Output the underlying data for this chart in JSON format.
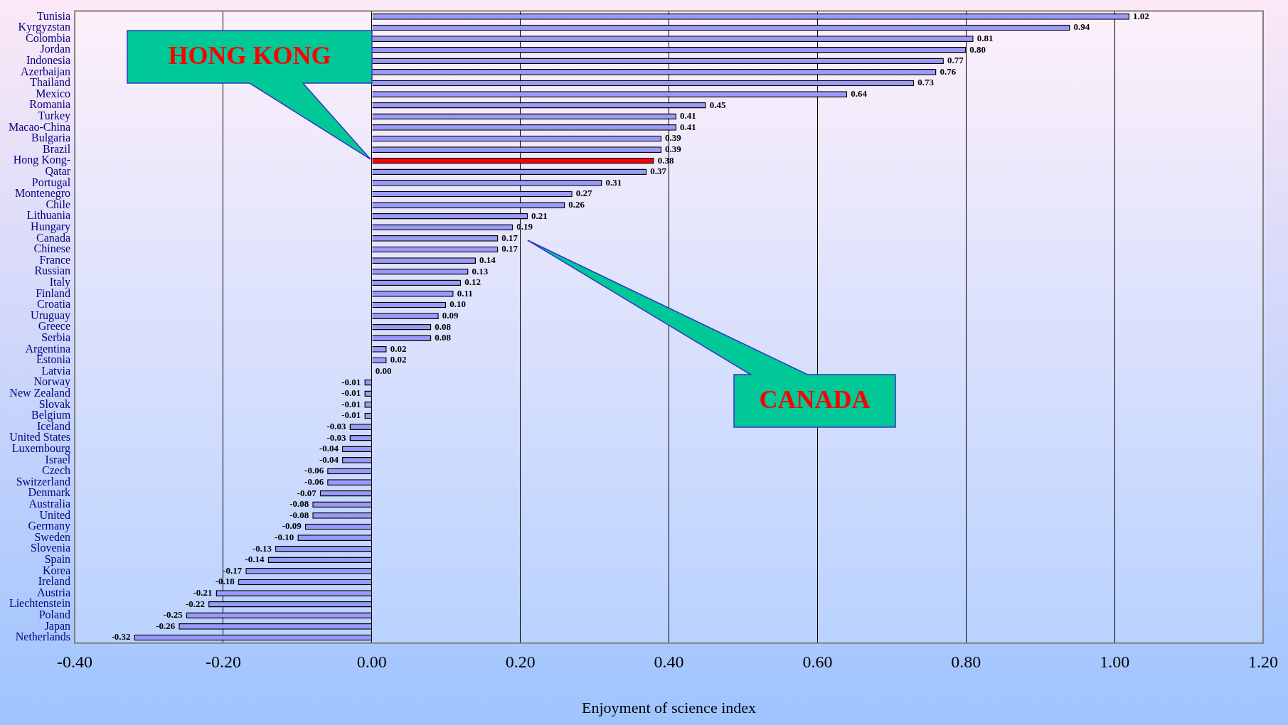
{
  "chart_data": {
    "type": "bar",
    "orientation": "horizontal",
    "xlabel": "Enjoyment of science index",
    "categories": [
      "Tunisia",
      "Kyrgyzstan",
      "Colombia",
      "Jordan",
      "Indonesia",
      "Azerbaijan",
      "Thailand",
      "Mexico",
      "Romania",
      "Turkey",
      "Macao-China",
      "Bulgaria",
      "Brazil",
      "Hong Kong-",
      "Qatar",
      "Portugal",
      "Montenegro",
      "Chile",
      "Lithuania",
      "Hungary",
      "Canada",
      "Chinese",
      "France",
      "Russian",
      "Italy",
      "Finland",
      "Croatia",
      "Uruguay",
      "Greece",
      "Serbia",
      "Argentina",
      "Estonia",
      "Latvia",
      "Norway",
      "New Zealand",
      "Slovak",
      "Belgium",
      "Iceland",
      "United States",
      "Luxembourg",
      "Israel",
      "Czech",
      "Switzerland",
      "Denmark",
      "Australia",
      "United",
      "Germany",
      "Sweden",
      "Slovenia",
      "Spain",
      "Korea",
      "Ireland",
      "Austria",
      "Liechtenstein",
      "Poland",
      "Japan",
      "Netherlands"
    ],
    "values": [
      1.02,
      0.94,
      0.81,
      0.8,
      0.77,
      0.76,
      0.73,
      0.64,
      0.45,
      0.41,
      0.41,
      0.39,
      0.39,
      0.38,
      0.37,
      0.31,
      0.27,
      0.26,
      0.21,
      0.19,
      0.17,
      0.17,
      0.14,
      0.13,
      0.12,
      0.11,
      0.1,
      0.09,
      0.08,
      0.08,
      0.02,
      0.02,
      0.0,
      -0.01,
      -0.01,
      -0.01,
      -0.01,
      -0.03,
      -0.03,
      -0.04,
      -0.04,
      -0.06,
      -0.06,
      -0.07,
      -0.08,
      -0.08,
      -0.09,
      -0.1,
      -0.13,
      -0.14,
      -0.17,
      -0.18,
      -0.21,
      -0.22,
      -0.25,
      -0.26,
      -0.32
    ],
    "colors": [
      "#9999ff",
      "#9999ff",
      "#9999ff",
      "#9999ff",
      "#9999ff",
      "#9999ff",
      "#9999ff",
      "#9999ff",
      "#9999ff",
      "#9999ff",
      "#9999ff",
      "#9999ff",
      "#9999ff",
      "#ff0000",
      "#9999ff",
      "#9999ff",
      "#9999ff",
      "#9999ff",
      "#9999ff",
      "#9999ff",
      "#9999ff",
      "#9999ff",
      "#9999ff",
      "#9999ff",
      "#9999ff",
      "#9999ff",
      "#9999ff",
      "#9999ff",
      "#9999ff",
      "#9999ff",
      "#9999ff",
      "#9999ff",
      "#9999ff",
      "#9999ff",
      "#9999ff",
      "#9999ff",
      "#9999ff",
      "#9999ff",
      "#9999ff",
      "#9999ff",
      "#9999ff",
      "#9999ff",
      "#9999ff",
      "#9999ff",
      "#9999ff",
      "#9999ff",
      "#9999ff",
      "#9999ff",
      "#9999ff",
      "#9999ff",
      "#9999ff",
      "#9999ff",
      "#9999ff",
      "#9999ff",
      "#9999ff",
      "#9999ff",
      "#9999ff"
    ],
    "xlim": [
      -0.4,
      1.2
    ],
    "xticks": [
      {
        "value": -0.4,
        "label": "-0.40"
      },
      {
        "value": -0.2,
        "label": "-0.20"
      },
      {
        "value": 0,
        "label": "0.00"
      },
      {
        "value": 0.2,
        "label": "0.20"
      },
      {
        "value": 0.4,
        "label": "0.40"
      },
      {
        "value": 0.6,
        "label": "0.60"
      },
      {
        "value": 0.8,
        "label": "0.80"
      },
      {
        "value": 1.0,
        "label": "1.00"
      },
      {
        "value": 1.2,
        "label": "1.20"
      }
    ],
    "value_labels": [
      "1.02",
      "0.94",
      "0.81",
      "0.80",
      "0.77",
      "0.76",
      "0.73",
      "0.64",
      "0.45",
      "0.41",
      "0.41",
      "0.39",
      "0.39",
      "0.38",
      "0.37",
      "0.31",
      "0.27",
      "0.26",
      "0.21",
      "0.19",
      "0.17",
      "0.17",
      "0.14",
      "0.13",
      "0.12",
      "0.11",
      "0.10",
      "0.09",
      "0.08",
      "0.08",
      "0.02",
      "0.02",
      "0.00",
      "-0.01",
      "-0.01",
      "-0.01",
      "-0.01",
      "-0.03",
      "-0.03",
      "-0.04",
      "-0.04",
      "-0.06",
      "-0.06",
      "-0.07",
      "-0.08",
      "-0.08",
      "-0.09",
      "-0.10",
      "-0.13",
      "-0.14",
      "-0.17",
      "-0.18",
      "-0.21",
      "-0.22",
      "-0.25",
      "-0.26",
      "-0.32"
    ],
    "grid": "x",
    "legend": false,
    "annotations": [
      "HONG KONG",
      "CANADA"
    ]
  }
}
